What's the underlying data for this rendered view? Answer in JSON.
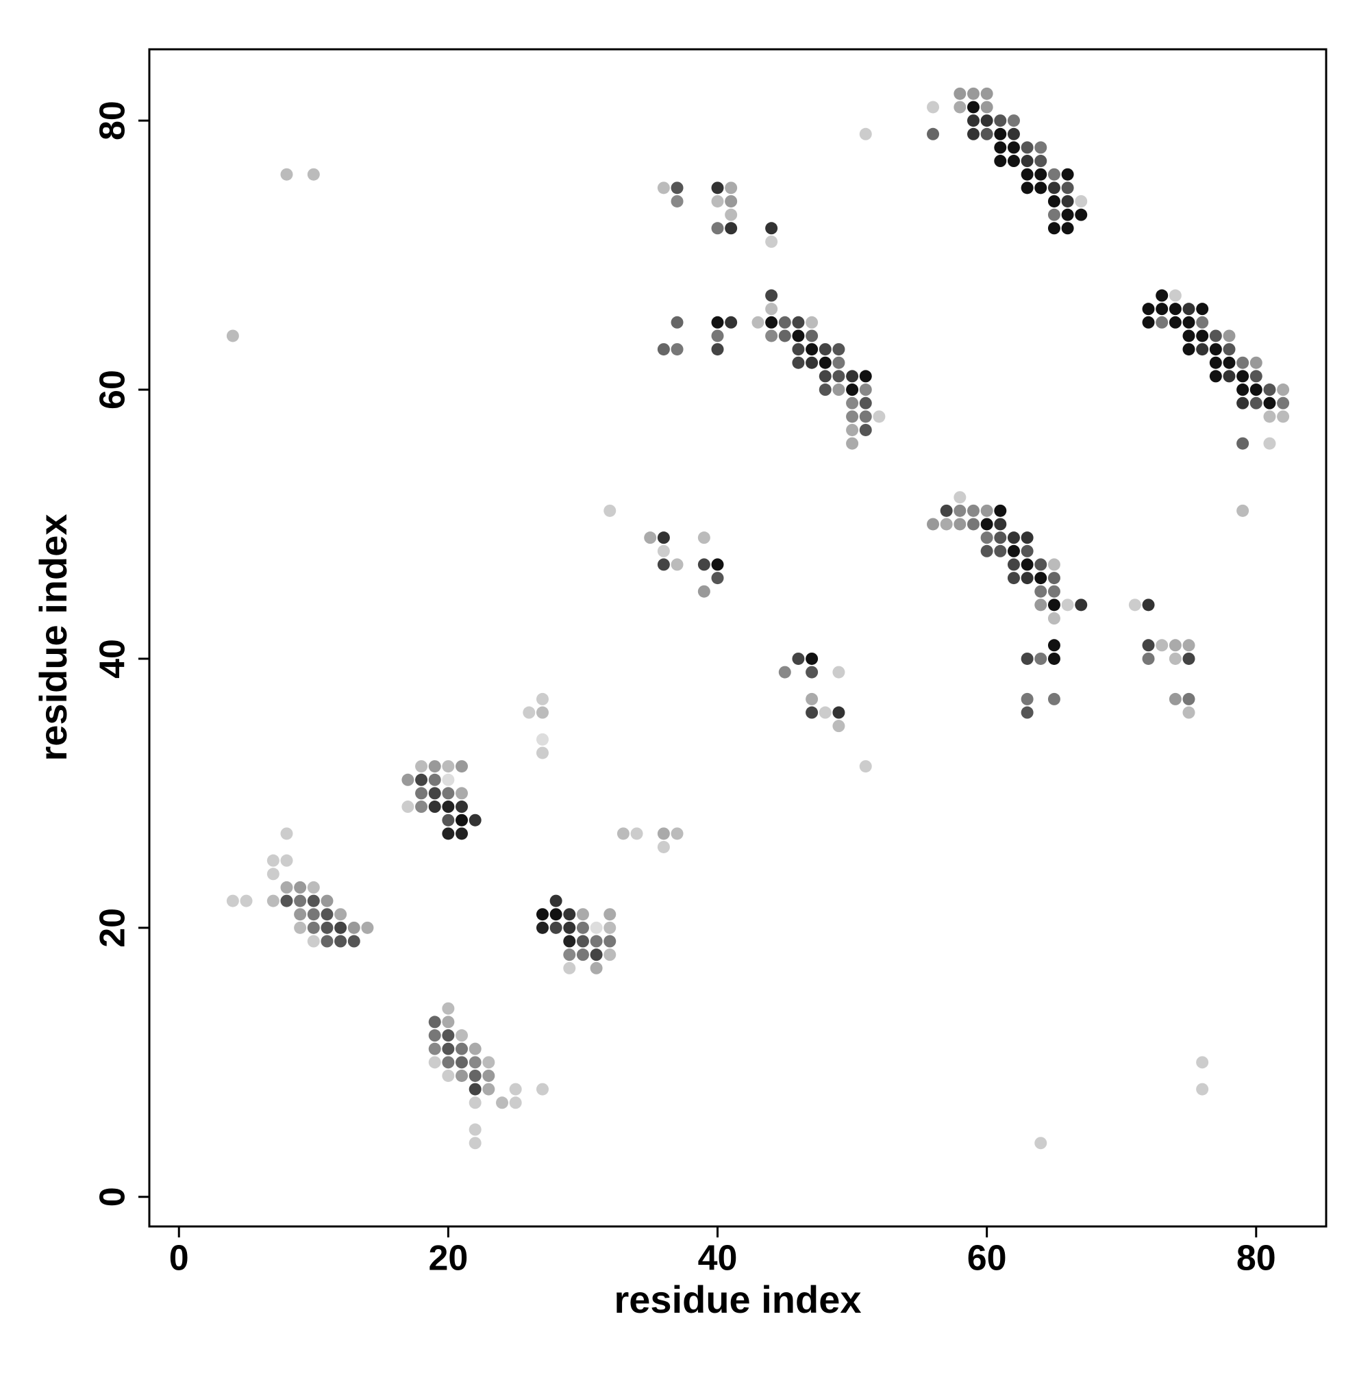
{
  "chart_data": {
    "type": "scatter",
    "xlabel": "residue index",
    "ylabel": "residue index",
    "xlim": [
      -2.2,
      85.2
    ],
    "ylim": [
      -2.2,
      85.3
    ],
    "xticks": [
      0,
      20,
      40,
      60,
      80
    ],
    "yticks": [
      0,
      20,
      40,
      60,
      80
    ],
    "x": [
      58,
      59,
      60,
      56,
      58,
      59,
      60,
      59,
      60,
      61,
      62,
      56,
      59,
      60,
      61,
      62,
      51,
      61,
      62,
      63,
      64,
      61,
      62,
      63,
      64,
      63,
      64,
      65,
      66,
      63,
      64,
      65,
      66,
      65,
      66,
      67,
      65,
      66,
      67,
      65,
      66,
      73,
      74,
      72,
      73,
      74,
      75,
      76,
      72,
      73,
      74,
      75,
      76,
      75,
      76,
      77,
      78,
      75,
      76,
      77,
      78,
      77,
      78,
      79,
      80,
      77,
      78,
      79,
      80,
      79,
      80,
      81,
      82,
      79,
      80,
      81,
      82,
      81,
      82,
      79,
      81,
      79,
      44,
      44,
      43,
      44,
      45,
      46,
      47,
      44,
      45,
      46,
      47,
      46,
      47,
      48,
      49,
      46,
      47,
      48,
      49,
      48,
      49,
      50,
      51,
      48,
      49,
      50,
      51,
      50,
      51,
      50,
      51,
      52,
      50,
      51,
      50,
      36,
      37,
      40,
      41,
      37,
      40,
      41,
      41,
      40,
      41,
      44,
      44,
      37,
      40,
      41,
      40,
      36,
      37,
      40,
      4,
      8,
      10,
      58,
      57,
      58,
      59,
      60,
      61,
      56,
      57,
      58,
      59,
      60,
      61,
      60,
      61,
      62,
      63,
      60,
      61,
      62,
      63,
      62,
      63,
      64,
      65,
      62,
      63,
      64,
      65,
      64,
      65,
      64,
      65,
      66,
      67,
      65,
      65,
      63,
      64,
      65,
      63,
      65,
      63,
      71,
      72,
      72,
      73,
      74,
      75,
      72,
      74,
      75,
      74,
      75,
      75,
      32,
      35,
      36,
      39,
      36,
      36,
      37,
      39,
      40,
      40,
      39,
      46,
      47,
      45,
      47,
      49,
      47,
      47,
      48,
      49,
      49,
      51,
      27,
      26,
      27,
      27,
      27,
      33,
      34,
      36,
      37,
      36,
      18,
      19,
      20,
      21,
      17,
      18,
      19,
      20,
      18,
      19,
      20,
      21,
      17,
      18,
      19,
      20,
      21,
      20,
      21,
      22,
      20,
      21,
      8,
      7,
      8,
      7,
      8,
      9,
      10,
      4,
      5,
      7,
      8,
      9,
      10,
      11,
      9,
      10,
      11,
      12,
      9,
      10,
      11,
      12,
      13,
      14,
      10,
      11,
      12,
      13,
      28,
      27,
      28,
      29,
      30,
      32,
      27,
      28,
      29,
      30,
      31,
      32,
      29,
      30,
      31,
      32,
      29,
      30,
      31,
      32,
      29,
      31,
      20,
      19,
      20,
      19,
      20,
      21,
      19,
      20,
      21,
      22,
      19,
      20,
      21,
      22,
      23,
      20,
      21,
      22,
      23,
      22,
      23,
      25,
      27,
      22,
      24,
      25,
      22,
      22,
      64,
      76,
      76
    ],
    "y": [
      82,
      82,
      82,
      81,
      81,
      81,
      81,
      80,
      80,
      80,
      80,
      79,
      79,
      79,
      79,
      79,
      79,
      78,
      78,
      78,
      78,
      77,
      77,
      77,
      77,
      76,
      76,
      76,
      76,
      75,
      75,
      75,
      75,
      74,
      74,
      74,
      73,
      73,
      73,
      72,
      72,
      67,
      67,
      66,
      66,
      66,
      66,
      66,
      65,
      65,
      65,
      65,
      65,
      64,
      64,
      64,
      64,
      63,
      63,
      63,
      63,
      62,
      62,
      62,
      62,
      61,
      61,
      61,
      61,
      60,
      60,
      60,
      60,
      59,
      59,
      59,
      59,
      58,
      58,
      56,
      56,
      51,
      67,
      66,
      65,
      65,
      65,
      65,
      65,
      64,
      64,
      64,
      64,
      63,
      63,
      63,
      63,
      62,
      62,
      62,
      62,
      61,
      61,
      61,
      61,
      60,
      60,
      60,
      60,
      59,
      59,
      58,
      58,
      58,
      57,
      57,
      56,
      75,
      75,
      75,
      75,
      74,
      74,
      74,
      73,
      72,
      72,
      72,
      71,
      65,
      65,
      65,
      64,
      63,
      63,
      63,
      64,
      76,
      76,
      52,
      51,
      51,
      51,
      51,
      51,
      50,
      50,
      50,
      50,
      50,
      50,
      49,
      49,
      49,
      49,
      48,
      48,
      48,
      48,
      47,
      47,
      47,
      47,
      46,
      46,
      46,
      46,
      45,
      45,
      44,
      44,
      44,
      44,
      43,
      41,
      40,
      40,
      40,
      37,
      37,
      36,
      44,
      44,
      41,
      41,
      41,
      41,
      40,
      40,
      40,
      37,
      37,
      36,
      51,
      49,
      49,
      49,
      48,
      47,
      47,
      47,
      47,
      46,
      45,
      40,
      40,
      39,
      39,
      39,
      37,
      36,
      36,
      36,
      35,
      32,
      37,
      36,
      36,
      34,
      33,
      27,
      27,
      27,
      27,
      26,
      32,
      32,
      32,
      32,
      31,
      31,
      31,
      31,
      30,
      30,
      30,
      30,
      29,
      29,
      29,
      29,
      29,
      28,
      28,
      28,
      27,
      27,
      27,
      25,
      25,
      24,
      23,
      23,
      23,
      22,
      22,
      22,
      22,
      22,
      22,
      22,
      21,
      21,
      21,
      21,
      20,
      20,
      20,
      20,
      20,
      20,
      19,
      19,
      19,
      19,
      22,
      21,
      21,
      21,
      21,
      21,
      20,
      20,
      20,
      20,
      20,
      20,
      19,
      19,
      19,
      19,
      18,
      18,
      18,
      18,
      17,
      17,
      14,
      13,
      13,
      12,
      12,
      12,
      11,
      11,
      11,
      11,
      10,
      10,
      10,
      10,
      10,
      9,
      9,
      9,
      9,
      8,
      8,
      8,
      8,
      7,
      7,
      7,
      5,
      4,
      4,
      10,
      8
    ],
    "colors": [
      "#999",
      "#999",
      "#999",
      "#ccc",
      "#aaa",
      "#111",
      "#999",
      "#333",
      "#333",
      "#555",
      "#777",
      "#666",
      "#333",
      "#555",
      "#111",
      "#333",
      "#ccc",
      "#111",
      "#111",
      "#555",
      "#777",
      "#111",
      "#111",
      "#333",
      "#555",
      "#111",
      "#111",
      "#777",
      "#111",
      "#111",
      "#111",
      "#333",
      "#555",
      "#111",
      "#333",
      "#ccc",
      "#777",
      "#111",
      "#111",
      "#111",
      "#111",
      "#111",
      "#ccc",
      "#111",
      "#111",
      "#111",
      "#333",
      "#111",
      "#111",
      "#777",
      "#111",
      "#111",
      "#777",
      "#111",
      "#111",
      "#555",
      "#999",
      "#111",
      "#333",
      "#111",
      "#555",
      "#111",
      "#111",
      "#777",
      "#999",
      "#111",
      "#333",
      "#111",
      "#555",
      "#111",
      "#111",
      "#555",
      "#aaa",
      "#333",
      "#555",
      "#111",
      "#777",
      "#bbb",
      "#bbb",
      "#666",
      "#ccc",
      "#bbb",
      "#444",
      "#bbb",
      "#bbb",
      "#111",
      "#666",
      "#444",
      "#bbb",
      "#888",
      "#666",
      "#111",
      "#666",
      "#444",
      "#111",
      "#444",
      "#555",
      "#444",
      "#333",
      "#111",
      "#777",
      "#444",
      "#555",
      "#333",
      "#111",
      "#555",
      "#999",
      "#111",
      "#888",
      "#888",
      "#555",
      "#888",
      "#777",
      "#ccc",
      "#aaa",
      "#555",
      "#aaa",
      "#bbb",
      "#555",
      "#333",
      "#aaa",
      "#888",
      "#bbb",
      "#999",
      "#bbb",
      "#777",
      "#333",
      "#333",
      "#ccc",
      "#666",
      "#111",
      "#333",
      "#777",
      "#666",
      "#777",
      "#444",
      "#bbb",
      "#bbb",
      "#bbb",
      "#ccc",
      "#444",
      "#888",
      "#888",
      "#999",
      "#111",
      "#999",
      "#aaa",
      "#999",
      "#777",
      "#111",
      "#333",
      "#777",
      "#555",
      "#333",
      "#333",
      "#555",
      "#555",
      "#111",
      "#555",
      "#444",
      "#111",
      "#555",
      "#bbb",
      "#444",
      "#333",
      "#111",
      "#666",
      "#777",
      "#777",
      "#999",
      "#111",
      "#ccc",
      "#333",
      "#bbb",
      "#111",
      "#444",
      "#777",
      "#111",
      "#777",
      "#777",
      "#555",
      "#ccc",
      "#333",
      "#444",
      "#bbb",
      "#aaa",
      "#aaa",
      "#777",
      "#bbb",
      "#444",
      "#999",
      "#777",
      "#bbb",
      "#ccc",
      "#aaa",
      "#333",
      "#bbb",
      "#ccc",
      "#444",
      "#bbb",
      "#444",
      "#111",
      "#555",
      "#999",
      "#444",
      "#111",
      "#888",
      "#555",
      "#ccc",
      "#aaa",
      "#444",
      "#ccc",
      "#333",
      "#bbb",
      "#ccc",
      "#ccc",
      "#ccc",
      "#bbb",
      "#ddd",
      "#ccc",
      "#bbb",
      "#ccc",
      "#aaa",
      "#bbb",
      "#ccc",
      "#bbb",
      "#999",
      "#bbb",
      "#999",
      "#999",
      "#444",
      "#777",
      "#ddd",
      "#777",
      "#444",
      "#777",
      "#aaa",
      "#ccc",
      "#888",
      "#333",
      "#222",
      "#333",
      "#555",
      "#111",
      "#333",
      "#222",
      "#222",
      "#ccc",
      "#ccc",
      "#ccc",
      "#ccc",
      "#aaa",
      "#999",
      "#bbb",
      "#ccc",
      "#ccc",
      "#bbb",
      "#555",
      "#777",
      "#555",
      "#999",
      "#999",
      "#777",
      "#555",
      "#aaa",
      "#bbb",
      "#777",
      "#555",
      "#444",
      "#999",
      "#aaa",
      "#ccc",
      "#666",
      "#555",
      "#555",
      "#333",
      "#111",
      "#111",
      "#333",
      "#aaa",
      "#aaa",
      "#222",
      "#444",
      "#333",
      "#777",
      "#ddd",
      "#bbb",
      "#222",
      "#555",
      "#777",
      "#777",
      "#888",
      "#777",
      "#444",
      "#bbb",
      "#ccc",
      "#aaa",
      "#bbb",
      "#666",
      "#aaa",
      "#777",
      "#555",
      "#bbb",
      "#888",
      "#555",
      "#777",
      "#aaa",
      "#ccc",
      "#777",
      "#666",
      "#888",
      "#bbb",
      "#ccc",
      "#999",
      "#666",
      "#999",
      "#444",
      "#aaa",
      "#ccc",
      "#ccc",
      "#ccc",
      "#bbb",
      "#ccc",
      "#ccc",
      "#ccc",
      "#ccc",
      "#ccc",
      "#ccc"
    ]
  }
}
